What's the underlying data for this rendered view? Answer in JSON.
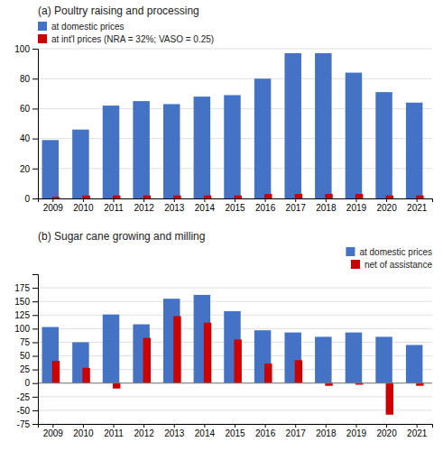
{
  "chart_data": [
    {
      "type": "bar",
      "title": "(a) Poultry raising and processing",
      "categories": [
        "2009",
        "2010",
        "2011",
        "2012",
        "2013",
        "2014",
        "2015",
        "2016",
        "2017",
        "2018",
        "2019",
        "2020",
        "2021"
      ],
      "series": [
        {
          "name": "at domestic prices",
          "color": "#4472C4",
          "values": [
            39,
            46,
            62,
            65,
            63,
            68,
            69,
            80,
            97,
            97,
            84,
            71,
            64
          ]
        },
        {
          "name": "at int'l prices (NRA = 32%; VASO = 0.25)",
          "color": "#CC0000",
          "values": [
            1,
            2,
            2,
            2,
            2,
            2,
            2,
            3,
            3,
            3,
            3,
            2,
            2
          ]
        }
      ],
      "ylim": [
        0,
        100
      ],
      "yticks": [
        0,
        20,
        40,
        60,
        80,
        100
      ],
      "grid": true,
      "legend": "upper left"
    },
    {
      "type": "bar",
      "title": "(b) Sugar cane growing and milling",
      "categories": [
        "2009",
        "2010",
        "2011",
        "2012",
        "2013",
        "2014",
        "2015",
        "2016",
        "2017",
        "2018",
        "2019",
        "2020",
        "2021"
      ],
      "series": [
        {
          "name": "at domestic prices",
          "color": "#4472C4",
          "values": [
            103,
            75,
            126,
            108,
            155,
            162,
            132,
            97,
            93,
            85,
            93,
            85,
            70
          ]
        },
        {
          "name": "net of assistance",
          "color": "#CC0000",
          "values": [
            41,
            28,
            -10,
            83,
            123,
            111,
            80,
            36,
            42,
            -5,
            -3,
            -58,
            -5
          ]
        }
      ],
      "ylim": [
        -75,
        200
      ],
      "yticks": [
        -75,
        -50,
        -25,
        0,
        25,
        50,
        75,
        100,
        125,
        150,
        175
      ],
      "grid": true,
      "legend": "upper right"
    }
  ]
}
